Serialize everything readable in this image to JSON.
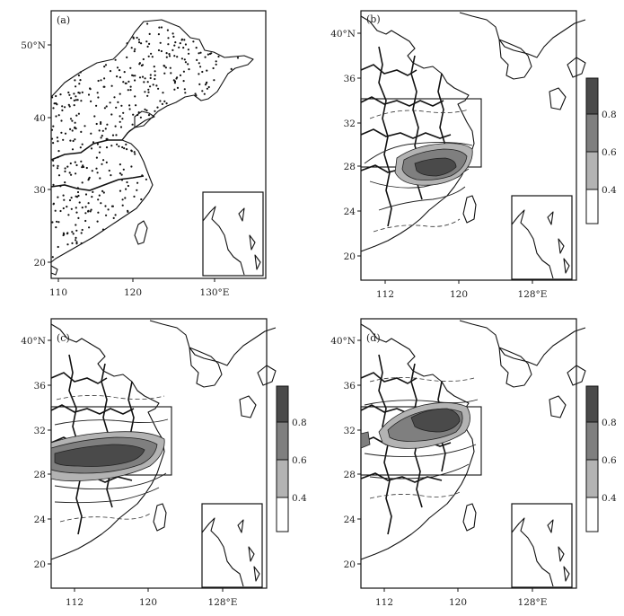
{
  "panels": [
    {
      "id": "a",
      "label": "(a)",
      "lat_ticks": [
        "50°N",
        "40",
        "30",
        "20"
      ],
      "lon_ticks": [
        "110",
        "120",
        "130°E"
      ],
      "content": "station-dots",
      "has_colorbar": false
    },
    {
      "id": "b",
      "label": "(b)",
      "lat_ticks": [
        "40°N",
        "36",
        "32",
        "28",
        "24",
        "20"
      ],
      "lon_ticks": [
        "112",
        "120",
        "128°E"
      ],
      "content": "correlation-contours",
      "has_colorbar": true
    },
    {
      "id": "c",
      "label": "(c)",
      "lat_ticks": [
        "40°N",
        "36",
        "32",
        "28",
        "24",
        "20"
      ],
      "lon_ticks": [
        "112",
        "120",
        "128°E"
      ],
      "content": "correlation-contours",
      "has_colorbar": true
    },
    {
      "id": "d",
      "label": "(d)",
      "lat_ticks": [
        "40°N",
        "36",
        "32",
        "28",
        "24",
        "20"
      ],
      "lon_ticks": [
        "112",
        "120",
        "128°E"
      ],
      "content": "correlation-contours",
      "has_colorbar": true
    }
  ],
  "colorbar": {
    "labels": [
      "0.8",
      "0.6",
      "0.4"
    ],
    "shades": [
      "#4a4a4a",
      "#7f7f7f",
      "#b3b3b3",
      "#ffffff"
    ]
  },
  "colors": {
    "line": "#111111",
    "background": "#ffffff"
  }
}
